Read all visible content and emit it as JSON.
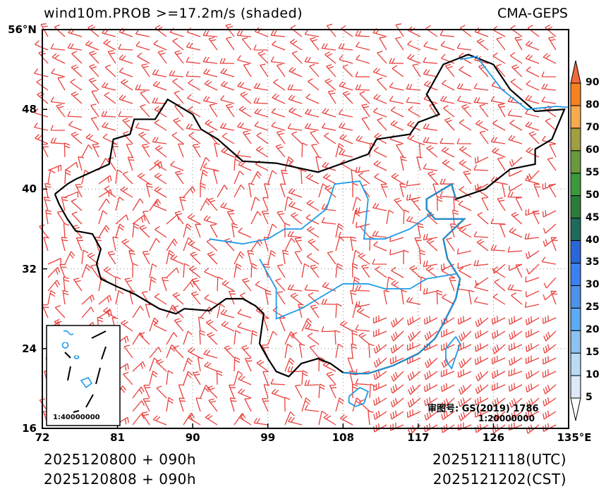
{
  "header": {
    "title": "wind10m.PROB >=17.2m/s (shaded)",
    "model": "CMA-GEPS"
  },
  "axes": {
    "lat_labels": [
      "56°N",
      "48",
      "40",
      "32",
      "24",
      "16"
    ],
    "lat_values": [
      56,
      48,
      40,
      32,
      24,
      16
    ],
    "lon_labels": [
      "72",
      "81",
      "90",
      "99",
      "108",
      "117",
      "126",
      "135°E"
    ],
    "lon_values": [
      72,
      81,
      90,
      99,
      108,
      117,
      126,
      135
    ]
  },
  "colorbar": {
    "labels": [
      "5",
      "10",
      "15",
      "20",
      "25",
      "30",
      "35",
      "40",
      "45",
      "50",
      "55",
      "60",
      "70",
      "80",
      "90"
    ],
    "colors": [
      "#dde9f7",
      "#b9dbf5",
      "#8cc2f2",
      "#5aacf6",
      "#4e92ea",
      "#3c80f2",
      "#2a66d8",
      "#1f6a5a",
      "#2a7c38",
      "#3a9a3a",
      "#6a983c",
      "#a0a040",
      "#f8aa4c",
      "#f6821f",
      "#f26a3a"
    ]
  },
  "inset": {
    "scale": "1:40000000"
  },
  "review": {
    "number": "审图号: GS(2019) 1786",
    "scale": "1:20000000"
  },
  "footer": {
    "init_utc": "2025120800 + 090h",
    "init_cst": "2025120808 + 090h",
    "valid_utc": "2025121118(UTC)",
    "valid_cst": "2025121202(CST)"
  },
  "colors": {
    "barb": "#e8403c",
    "river": "#1e9be8",
    "border": "#000000"
  }
}
